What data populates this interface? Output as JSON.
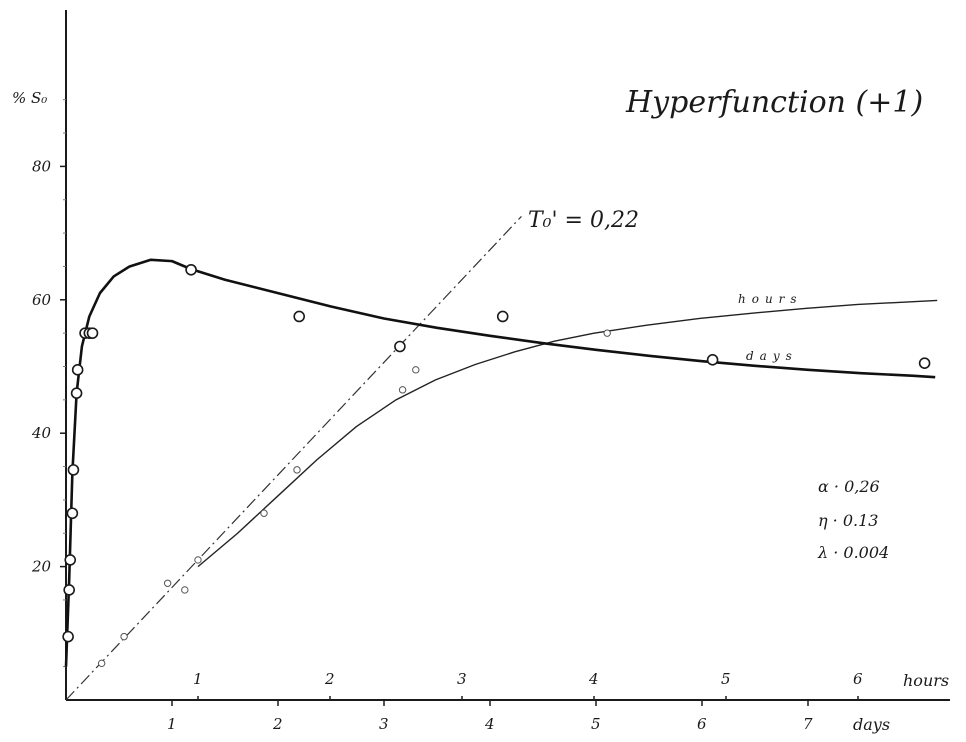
{
  "chart_data": {
    "type": "scatter",
    "title": "Hyperfunction (+1)",
    "ylabel": "% S₀",
    "ylim": [
      0,
      100
    ],
    "yticks": [
      20,
      40,
      60,
      80
    ],
    "x_bottom": {
      "unit_label": "days",
      "ticks": [
        1,
        2,
        3,
        4,
        5,
        6,
        7
      ],
      "lim": [
        0,
        8.2
      ]
    },
    "x_top": {
      "unit_label": "hours",
      "ticks": [
        1,
        2,
        3,
        4,
        5,
        6
      ],
      "lim": [
        0,
        6.6
      ]
    },
    "grid": false,
    "annotation": {
      "text": "T₀' = 0,22"
    },
    "parameters": [
      "α · 0,26",
      "η · 0.13",
      "λ · 0.004"
    ],
    "series": [
      {
        "name": "days",
        "axis": "bottom",
        "points": [
          [
            0.02,
            9.5
          ],
          [
            0.03,
            16.5
          ],
          [
            0.04,
            21
          ],
          [
            0.06,
            28
          ],
          [
            0.07,
            34.5
          ],
          [
            0.1,
            46
          ],
          [
            0.11,
            49.5
          ],
          [
            0.18,
            55
          ],
          [
            0.22,
            55
          ],
          [
            0.25,
            55
          ],
          [
            1.18,
            64.5
          ],
          [
            2.2,
            57.5
          ],
          [
            3.15,
            53
          ],
          [
            4.12,
            57.5
          ],
          [
            6.1,
            51
          ],
          [
            8.1,
            50.5
          ]
        ],
        "curve": [
          [
            0.0,
            5
          ],
          [
            0.03,
            18
          ],
          [
            0.06,
            34
          ],
          [
            0.1,
            46
          ],
          [
            0.15,
            53
          ],
          [
            0.22,
            57.5
          ],
          [
            0.32,
            61
          ],
          [
            0.45,
            63.5
          ],
          [
            0.6,
            65
          ],
          [
            0.8,
            66
          ],
          [
            1.0,
            65.8
          ],
          [
            1.18,
            64.6
          ],
          [
            1.5,
            63
          ],
          [
            2.0,
            61
          ],
          [
            2.5,
            59
          ],
          [
            3.0,
            57.2
          ],
          [
            3.5,
            55.8
          ],
          [
            4.0,
            54.6
          ],
          [
            4.5,
            53.5
          ],
          [
            5.0,
            52.5
          ],
          [
            5.5,
            51.6
          ],
          [
            6.0,
            50.8
          ],
          [
            6.5,
            50.1
          ],
          [
            7.0,
            49.5
          ],
          [
            7.5,
            49
          ],
          [
            8.0,
            48.6
          ],
          [
            8.2,
            48.4
          ]
        ]
      },
      {
        "name": "hours",
        "axis": "top",
        "points": [
          [
            0.27,
            5.5
          ],
          [
            0.44,
            9.5
          ],
          [
            0.77,
            17.5
          ],
          [
            0.9,
            16.5
          ],
          [
            1.0,
            21
          ],
          [
            1.5,
            28
          ],
          [
            1.75,
            34.5
          ],
          [
            2.55,
            46.5
          ],
          [
            2.65,
            49.5
          ],
          [
            4.1,
            55
          ]
        ],
        "curve": [
          [
            1.0,
            20
          ],
          [
            1.3,
            25
          ],
          [
            1.6,
            30.5
          ],
          [
            1.9,
            36
          ],
          [
            2.2,
            41
          ],
          [
            2.5,
            45
          ],
          [
            2.8,
            48
          ],
          [
            3.1,
            50.3
          ],
          [
            3.4,
            52.2
          ],
          [
            3.7,
            53.8
          ],
          [
            4.0,
            55
          ],
          [
            4.4,
            56.2
          ],
          [
            4.8,
            57.2
          ],
          [
            5.2,
            58
          ],
          [
            5.6,
            58.7
          ],
          [
            6.0,
            59.3
          ],
          [
            6.4,
            59.7
          ],
          [
            6.6,
            59.9
          ]
        ]
      },
      {
        "name": "T₀' = 0,22",
        "axis": "top",
        "style": "dash-dot",
        "line": [
          [
            0,
            0
          ],
          [
            3.45,
            72.5
          ]
        ]
      }
    ]
  }
}
